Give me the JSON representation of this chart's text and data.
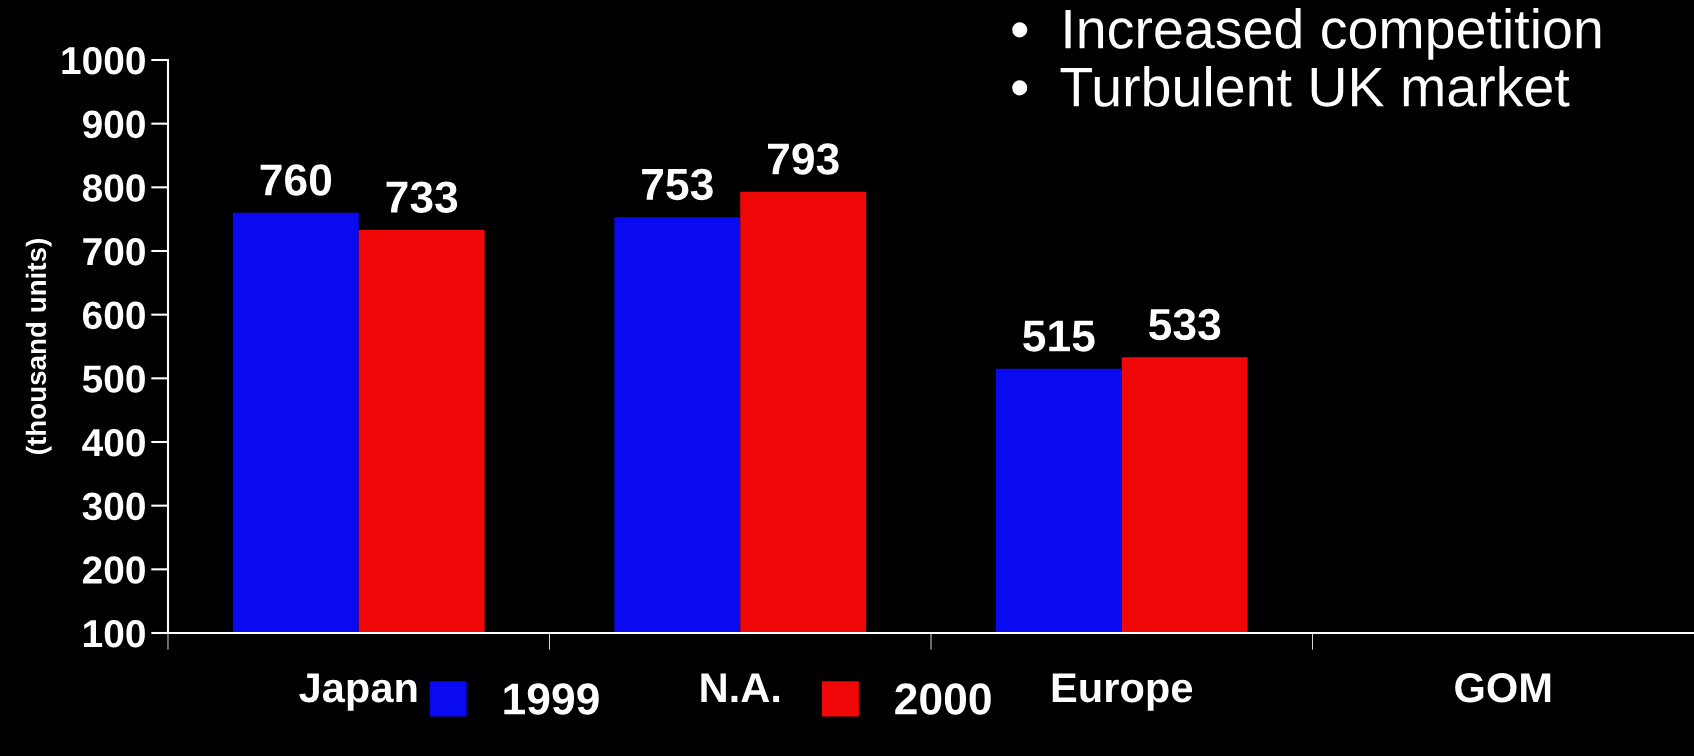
{
  "chart_data": {
    "type": "bar",
    "ylabel": "(thousand units)",
    "categories": [
      "Japan",
      "N.A.",
      "Europe",
      "GOM"
    ],
    "series": [
      {
        "name": "1999",
        "color": "#0a0af0",
        "values": [
          760,
          753,
          515,
          null
        ]
      },
      {
        "name": "2000",
        "color": "#f00808",
        "values": [
          733,
          793,
          533,
          null
        ]
      }
    ],
    "ylim": [
      100,
      1000
    ],
    "yticks": [
      100,
      200,
      300,
      400,
      500,
      600,
      700,
      800,
      900,
      1000
    ],
    "data_labels": true,
    "legend": "bottom",
    "grid": false,
    "annotations": [
      "•  Increased competition",
      "•  Turbulent UK market"
    ]
  }
}
